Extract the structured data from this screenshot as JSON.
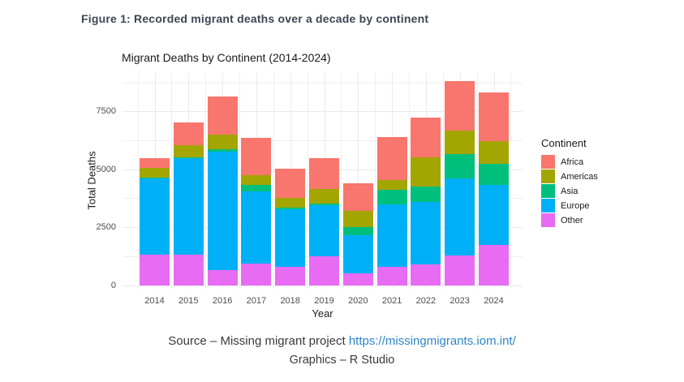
{
  "page": {
    "caption": "Figure 1: Recorded migrant deaths over a decade by continent",
    "source_prefix": "Source – Missing migrant project ",
    "source_link": "https://missingmigrants.iom.int/",
    "graphics_line": "Graphics – R Studio"
  },
  "colors": {
    "caption": "#3d4653",
    "link": "#2e86c8",
    "body_text": "#3a3a3a"
  },
  "chart_data": {
    "type": "bar",
    "stacked": true,
    "title": "Migrant Deaths by Continent (2014-2024)",
    "xlabel": "Year",
    "ylabel": "Total Deaths",
    "categories": [
      "2014",
      "2015",
      "2016",
      "2017",
      "2018",
      "2019",
      "2020",
      "2021",
      "2022",
      "2023",
      "2024"
    ],
    "series": [
      {
        "name": "Africa",
        "color": "#F8766D",
        "values": [
          410,
          955,
          1670,
          1610,
          1280,
          1320,
          1190,
          1835,
          1715,
          2135,
          2130
        ]
      },
      {
        "name": "Americas",
        "color": "#A3A500",
        "values": [
          435,
          555,
          605,
          430,
          410,
          640,
          700,
          430,
          1285,
          1015,
          980
        ]
      },
      {
        "name": "Asia",
        "color": "#00BF7D",
        "values": [
          30,
          30,
          120,
          260,
          70,
          80,
          350,
          620,
          640,
          1050,
          910
        ]
      },
      {
        "name": "Europe",
        "color": "#00B0F6",
        "values": [
          3290,
          4170,
          5125,
          3125,
          2480,
          2195,
          1630,
          2715,
          2715,
          3320,
          2590
        ]
      },
      {
        "name": "Other",
        "color": "#E76BF3",
        "values": [
          1310,
          1300,
          635,
          925,
          800,
          1240,
          520,
          775,
          890,
          1275,
          1720
        ]
      }
    ],
    "stack_order_bottom_to_top": [
      "Other",
      "Europe",
      "Asia",
      "Americas",
      "Africa"
    ],
    "yticks": [
      0,
      2500,
      5000,
      7500
    ],
    "ylim": [
      0,
      9160
    ],
    "grid": true,
    "legend_title": "Continent",
    "legend_position": "right"
  }
}
